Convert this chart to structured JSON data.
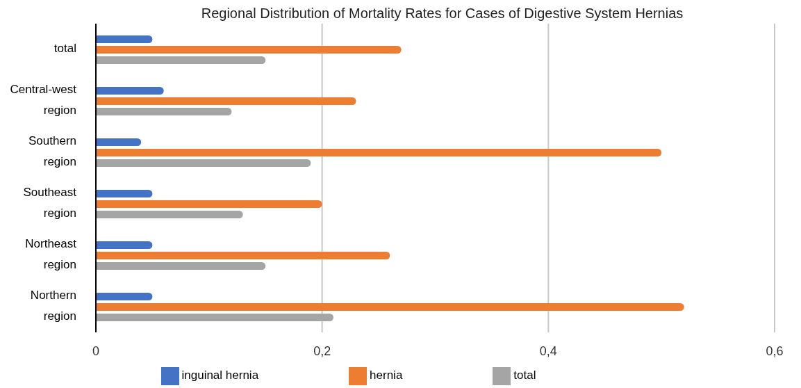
{
  "chart_data": {
    "type": "bar",
    "orientation": "horizontal",
    "title": "Regional Distribution of Mortality Rates for Cases of Digestive System Hernias",
    "categories": [
      "total",
      "Central-west region",
      "Southern region",
      "Southeast region",
      "Northeast region",
      "Northern region"
    ],
    "series": [
      {
        "name": "inguinal hernia",
        "color": "#4472c4",
        "values": [
          0.05,
          0.06,
          0.04,
          0.05,
          0.05,
          0.05
        ]
      },
      {
        "name": "hernia",
        "color": "#ed7d31",
        "values": [
          0.27,
          0.23,
          0.5,
          0.2,
          0.26,
          0.52
        ]
      },
      {
        "name": "total",
        "color": "#a5a5a5",
        "values": [
          0.15,
          0.12,
          0.19,
          0.13,
          0.15,
          0.21
        ]
      }
    ],
    "xlim": [
      0,
      0.6
    ],
    "xticks": [
      0,
      {
        "value": 0.2,
        "label": "0,2"
      },
      {
        "value": 0.4,
        "label": "0,4"
      },
      {
        "value": 0.6,
        "label": "0,6"
      }
    ],
    "grid": "x",
    "legend": "bottom"
  }
}
